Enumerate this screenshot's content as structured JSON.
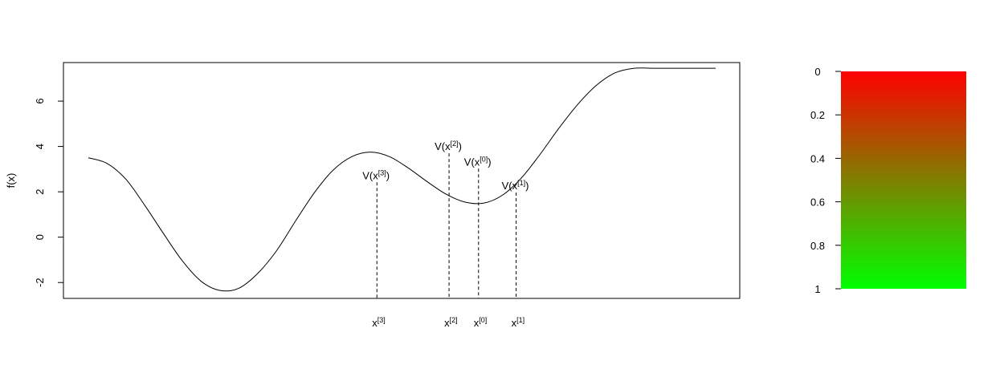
{
  "chart_data": [
    {
      "type": "line",
      "title": "",
      "xlabel": "",
      "ylabel": "f(x)",
      "xlim": [
        0,
        1
      ],
      "ylim": [
        -2.7,
        7.7
      ],
      "yticks": [
        -2,
        0,
        2,
        4,
        6
      ],
      "curve": {
        "x": [
          0.0,
          0.03,
          0.06,
          0.09,
          0.12,
          0.15,
          0.18,
          0.21,
          0.24,
          0.27,
          0.3,
          0.33,
          0.36,
          0.39,
          0.42,
          0.45,
          0.48,
          0.51,
          0.54,
          0.57,
          0.6,
          0.63,
          0.66,
          0.69,
          0.72,
          0.75,
          0.78,
          0.81,
          0.84,
          0.87,
          0.9,
          0.93,
          0.96,
          0.99,
          1.0
        ],
        "y": [
          3.5,
          3.25,
          2.55,
          1.4,
          0.15,
          -1.05,
          -1.95,
          -2.35,
          -2.25,
          -1.6,
          -0.6,
          0.7,
          1.95,
          2.95,
          3.55,
          3.75,
          3.55,
          3.05,
          2.45,
          1.9,
          1.55,
          1.5,
          1.85,
          2.6,
          3.65,
          4.8,
          5.85,
          6.7,
          7.25,
          7.45,
          7.45,
          7.45,
          7.45,
          7.45,
          7.45
        ]
      },
      "points": [
        {
          "label": "x",
          "sup": "[3]",
          "x": 0.46,
          "y": 2.42
        },
        {
          "label": "x",
          "sup": "[2]",
          "x": 0.575,
          "y": 3.7
        },
        {
          "label": "x",
          "sup": "[0]",
          "x": 0.622,
          "y": 3.02
        },
        {
          "label": "x",
          "sup": "[1]",
          "x": 0.682,
          "y": 1.97
        }
      ],
      "segments": [
        {
          "label": "V(x",
          "sup": "[2]",
          "tail": ")",
          "y": 3.7,
          "x0": 0.457,
          "x1": 0.692,
          "stops": [
            [
              "0",
              "#00ff00"
            ],
            [
              "0.25",
              "#66ff00"
            ],
            [
              "0.33",
              "#ffbb00"
            ],
            [
              "0.38",
              "#ff9900"
            ],
            [
              "0.45",
              "#66ff00"
            ],
            [
              "1",
              "#00ff00"
            ]
          ]
        },
        {
          "label": "V(x",
          "sup": "[0]",
          "tail": ")",
          "y": 3.02,
          "x0": 0.503,
          "x1": 0.739,
          "stops": [
            [
              "0",
              "#33ff00"
            ],
            [
              "0.18",
              "#bbff00"
            ],
            [
              "0.30",
              "#ccff00"
            ],
            [
              "0.42",
              "#66ff00"
            ],
            [
              "1",
              "#00ff00"
            ]
          ]
        },
        {
          "label": "V(x",
          "sup": "[3]",
          "tail": ")",
          "y": 2.42,
          "x0": 0.342,
          "x1": 0.578,
          "stops": [
            [
              "0",
              "#00ff00"
            ],
            [
              "0.48",
              "#00ff00"
            ],
            [
              "0.52",
              "#ff0000"
            ],
            [
              "1",
              "#ff0000"
            ]
          ]
        },
        {
          "label": "V(x",
          "sup": "[1]",
          "tail": ")",
          "y": 1.97,
          "x0": 0.562,
          "x1": 0.797,
          "stops": [
            [
              "0",
              "#ff9900"
            ],
            [
              "0.25",
              "#ffaa00"
            ],
            [
              "0.40",
              "#ffdd00"
            ],
            [
              "0.55",
              "#bbff00"
            ],
            [
              "1",
              "#00ff00"
            ]
          ]
        }
      ]
    },
    {
      "type": "heatmap",
      "title": "",
      "legend_ticks": [
        "0",
        "0.2",
        "0.4",
        "0.6",
        "0.8",
        "1"
      ],
      "range": [
        0,
        1
      ],
      "colors": {
        "0": "#ff0000",
        "0.35": "#ff9900",
        "0.7": "#ffff00",
        "1": "#00ff00"
      }
    }
  ]
}
